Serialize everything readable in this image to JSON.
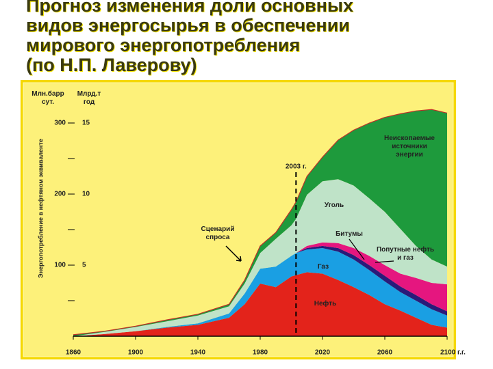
{
  "title_lines": [
    "Прогноз изменения доли основных",
    "видов энергосырья в обеспечении",
    "мирового энергопотребления",
    "(по Н.П. Лаверову)"
  ],
  "chart_data": {
    "type": "stacked_area",
    "y_label": "Энергопотребление в нефтяном эквиваленте",
    "y_unit": "Млн.барр сут.",
    "y2_unit": "Млрд.т год",
    "x": [
      1860,
      1880,
      1900,
      1920,
      1940,
      1960,
      1970,
      1980,
      1990,
      2000,
      2003,
      2010,
      2020,
      2030,
      2040,
      2050,
      2060,
      2070,
      2080,
      2090,
      2100
    ],
    "xlim": [
      1860,
      2100
    ],
    "xticks": [
      1860,
      1900,
      1940,
      1980,
      2020,
      2060,
      {
        "value": 2100,
        "label": "2100 г.г."
      }
    ],
    "ylim": [
      0,
      350
    ],
    "yticks": [
      100,
      200,
      300
    ],
    "yminor_ticks": [
      50,
      150,
      250
    ],
    "y2lim": [
      0,
      17.5
    ],
    "y2ticks": [
      5,
      10,
      15
    ],
    "series": [
      {
        "name": "Нефть",
        "color": "#e3231b",
        "values": [
          0,
          3,
          7,
          12,
          16,
          26,
          45,
          74,
          69,
          84,
          86,
          90,
          88,
          79,
          69,
          58,
          45,
          36,
          26,
          16,
          12
        ]
      },
      {
        "name": "Газ",
        "color": "#1a9fe3",
        "values": [
          0,
          0,
          0,
          1,
          2,
          6,
          15,
          21,
          29,
          29,
          31,
          32,
          36,
          40,
          39,
          35,
          32,
          26,
          24,
          22,
          17
        ]
      },
      {
        "name": "Битумы",
        "color": "#2a1a7a",
        "values": [
          0,
          0,
          0,
          0,
          0,
          0,
          0,
          0,
          0,
          0,
          0,
          2,
          3,
          5,
          6,
          7,
          8,
          8,
          8,
          7,
          6
        ]
      },
      {
        "name": "Попутные нефть и газ",
        "color": "#e5167f",
        "values": [
          0,
          0,
          0,
          0,
          0,
          0,
          0,
          0,
          0,
          0,
          0,
          3,
          5,
          7,
          10,
          13,
          15,
          18,
          24,
          30,
          38
        ]
      },
      {
        "name": "Уголь",
        "color": "#bfe3c8",
        "values": [
          0,
          3,
          6,
          8,
          11,
          10,
          14,
          22,
          39,
          43,
          48,
          72,
          86,
          90,
          88,
          81,
          75,
          63,
          45,
          33,
          25
        ]
      },
      {
        "name": "Неископаемые источники энергии",
        "color": "#1e9a3c",
        "values": [
          2,
          1,
          1,
          2,
          2,
          3,
          5,
          10,
          9,
          22,
          24,
          26,
          34,
          55,
          78,
          106,
          133,
          162,
          190,
          211,
          216
        ]
      }
    ],
    "annotations": [
      {
        "x": 2003,
        "label": "2003 г."
      },
      {
        "label": "Сценарий спроса"
      }
    ]
  }
}
